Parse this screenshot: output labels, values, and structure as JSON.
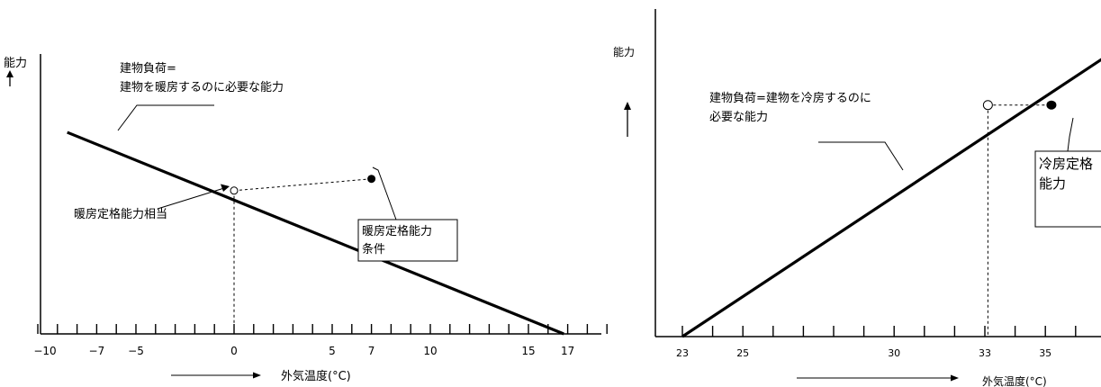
{
  "chart_data": [
    {
      "type": "line",
      "title": "",
      "ylabel": "能力",
      "xlabel": "外気温度(°C)",
      "xlim": [
        -10,
        19.5
      ],
      "x_ticks": [
        -10,
        -7,
        -5,
        0,
        5,
        7,
        10,
        15,
        17
      ],
      "series": [
        {
          "name": "",
          "x": [
            -8.5,
            16.8
          ],
          "y": [
            0.858,
            0.0
          ]
        }
      ],
      "rated_point": {
        "x": 7,
        "y": 0.66
      },
      "intersection": {
        "x": 0,
        "y": 0.61
      },
      "annotations": {
        "load_line_1": "建物負荷=",
        "load_line_2": "建物を暖房するのに必要な能力",
        "equivalent": "暖房定格能力相当",
        "rated_box_1": "暖房定格能力",
        "rated_box_2": "条件"
      }
    },
    {
      "type": "line",
      "title": "",
      "ylabel": "能力",
      "xlabel": "外気温度(°C)",
      "xlim": [
        23,
        38.5
      ],
      "x_ticks": [
        23,
        25,
        30,
        33,
        35
      ],
      "series": [
        {
          "name": "",
          "x": [
            23.0,
            37.8
          ],
          "y": [
            0.0,
            1.0
          ]
        }
      ],
      "rated_point": {
        "x": 35.2,
        "y": 0.782
      },
      "intersection": {
        "x": 33.1,
        "y": 0.782
      },
      "annotations": {
        "load_line_1": "建物負荷=建物を冷房するのに",
        "load_line_2": "必要な能力",
        "rated_box_1": "冷房定格",
        "rated_box_2": "能力"
      }
    }
  ]
}
